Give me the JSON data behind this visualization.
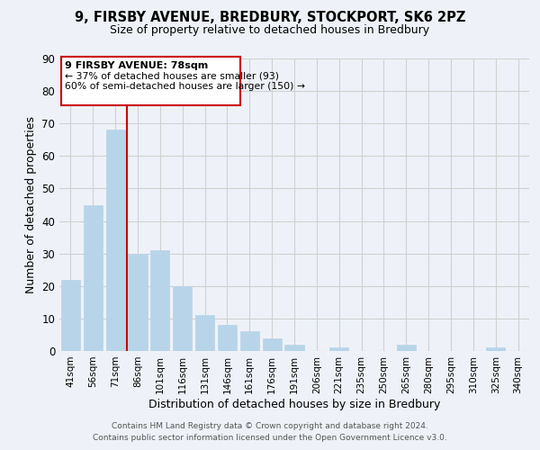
{
  "title": "9, FIRSBY AVENUE, BREDBURY, STOCKPORT, SK6 2PZ",
  "subtitle": "Size of property relative to detached houses in Bredbury",
  "xlabel": "Distribution of detached houses by size in Bredbury",
  "ylabel": "Number of detached properties",
  "categories": [
    "41sqm",
    "56sqm",
    "71sqm",
    "86sqm",
    "101sqm",
    "116sqm",
    "131sqm",
    "146sqm",
    "161sqm",
    "176sqm",
    "191sqm",
    "206sqm",
    "221sqm",
    "235sqm",
    "250sqm",
    "265sqm",
    "280sqm",
    "295sqm",
    "310sqm",
    "325sqm",
    "340sqm"
  ],
  "values": [
    22,
    45,
    68,
    30,
    31,
    20,
    11,
    8,
    6,
    4,
    2,
    0,
    1,
    0,
    0,
    2,
    0,
    0,
    0,
    1,
    0
  ],
  "bar_color": "#b8d4e8",
  "bar_edge_color": "#b8d4e8",
  "grid_color": "#d0d0d0",
  "background_color": "#eef2f8",
  "annotation_box_edge": "#cc0000",
  "vline_color": "#cc0000",
  "annotation_title": "9 FIRSBY AVENUE: 78sqm",
  "annotation_line1": "← 37% of detached houses are smaller (93)",
  "annotation_line2": "60% of semi-detached houses are larger (150) →",
  "ylim": [
    0,
    90
  ],
  "yticks": [
    0,
    10,
    20,
    30,
    40,
    50,
    60,
    70,
    80,
    90
  ],
  "footer1": "Contains HM Land Registry data © Crown copyright and database right 2024.",
  "footer2": "Contains public sector information licensed under the Open Government Licence v3.0."
}
